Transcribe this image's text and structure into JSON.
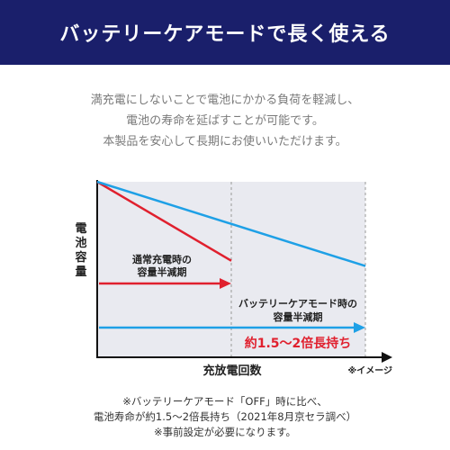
{
  "header": {
    "title": "バッテリーケアモードで長く使える"
  },
  "intro": {
    "lines": [
      "満充電にしないことで電池にかかる負荷を軽減し、",
      "電池の寿命を延ばすことが可能です。",
      "本製品を安心して長期にお使いいただけます。"
    ]
  },
  "chart_data": {
    "type": "line",
    "title": "",
    "xlabel": "充放電回数",
    "ylabel": "電池容量",
    "note": "※イメージ",
    "x_range": [
      0,
      100
    ],
    "y_range": [
      0,
      100
    ],
    "colors": {
      "normal": "#e0202e",
      "care": "#1ea0e6",
      "panel": "#e9eaf0"
    },
    "series": [
      {
        "name": "通常充電時",
        "x": [
          0,
          50
        ],
        "y": [
          100,
          55
        ]
      },
      {
        "name": "バッテリーケアモード時",
        "x": [
          0,
          100
        ],
        "y": [
          100,
          52
        ]
      }
    ],
    "annotations": {
      "normal_label": [
        "通常充電時の",
        "容量半減期"
      ],
      "care_label": [
        "バッテリーケアモード時の",
        "容量半減期"
      ],
      "emphasis": "約1.5〜2倍長持ち"
    }
  },
  "footnote": {
    "lines": [
      "※バッテリーケアモード「OFF」時に比べ、",
      "電池寿命が約1.5〜2倍長持ち（2021年8月京セラ調べ）",
      "※事前設定が必要になります。"
    ]
  }
}
